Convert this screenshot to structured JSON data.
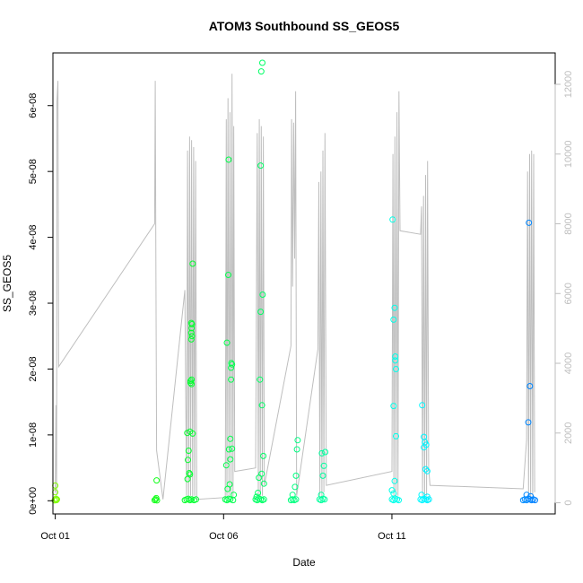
{
  "chart_data": {
    "type": "scatter",
    "title": "ATOM3 Southbound SS_GEOS5",
    "xlabel": "Date",
    "ylabel": "SS_GEOS5",
    "x_ticks": [
      {
        "value": 1,
        "label": "Oct 01"
      },
      {
        "value": 6,
        "label": "Oct 06"
      },
      {
        "value": 11,
        "label": "Oct 11"
      }
    ],
    "y_ticks": [
      {
        "value": 0,
        "label": "0e+00"
      },
      {
        "value": 1e-08,
        "label": "1e-08"
      },
      {
        "value": 2e-08,
        "label": "2e-08"
      },
      {
        "value": 3e-08,
        "label": "3e-08"
      },
      {
        "value": 4e-08,
        "label": "4e-08"
      },
      {
        "value": 5e-08,
        "label": "5e-08"
      },
      {
        "value": 6e-08,
        "label": "6e-08"
      }
    ],
    "y2_ticks": [
      {
        "value": 0,
        "label": "0"
      },
      {
        "value": 2000,
        "label": "2000"
      },
      {
        "value": 4000,
        "label": "4000"
      },
      {
        "value": 6000,
        "label": "6000"
      },
      {
        "value": 8000,
        "label": "8000"
      },
      {
        "value": 10000,
        "label": "10000"
      },
      {
        "value": 12000,
        "label": "12000"
      }
    ],
    "xlim": [
      0.93,
      15.85
    ],
    "ylim": [
      -2e-09,
      6.8e-08
    ],
    "y2lim": [
      -320,
      12900
    ],
    "grid": false,
    "colors": {
      "altitude_line": "#bebebe",
      "scale": [
        "#80ff00",
        "#00ff20",
        "#00ff80",
        "#00ffff",
        "#0080ff"
      ]
    },
    "altitude": [
      {
        "x": 1.0,
        "y": 300
      },
      {
        "x": 1.02,
        "y": 2800
      },
      {
        "x": 1.04,
        "y": 200
      },
      {
        "x": 1.05,
        "y": 11500
      },
      {
        "x": 1.08,
        "y": 12100
      },
      {
        "x": 1.1,
        "y": 3900
      },
      {
        "x": 3.95,
        "y": 8000
      },
      {
        "x": 3.97,
        "y": 12100
      },
      {
        "x": 3.99,
        "y": 6200
      },
      {
        "x": 4.01,
        "y": 1500
      },
      {
        "x": 4.2,
        "y": 100
      },
      {
        "x": 4.85,
        "y": 6100
      },
      {
        "x": 4.9,
        "y": 200
      },
      {
        "x": 4.93,
        "y": 10100
      },
      {
        "x": 4.96,
        "y": 150
      },
      {
        "x": 4.99,
        "y": 10500
      },
      {
        "x": 5.02,
        "y": 200
      },
      {
        "x": 5.05,
        "y": 10400
      },
      {
        "x": 5.08,
        "y": 150
      },
      {
        "x": 5.11,
        "y": 10200
      },
      {
        "x": 5.14,
        "y": 200
      },
      {
        "x": 5.17,
        "y": 9800
      },
      {
        "x": 5.2,
        "y": 100
      },
      {
        "x": 6.05,
        "y": 150
      },
      {
        "x": 6.08,
        "y": 11000
      },
      {
        "x": 6.1,
        "y": 200
      },
      {
        "x": 6.13,
        "y": 11600
      },
      {
        "x": 6.16,
        "y": 150
      },
      {
        "x": 6.19,
        "y": 11200
      },
      {
        "x": 6.22,
        "y": 200
      },
      {
        "x": 6.25,
        "y": 12300
      },
      {
        "x": 6.28,
        "y": 100
      },
      {
        "x": 6.3,
        "y": 10800
      },
      {
        "x": 6.33,
        "y": 900
      },
      {
        "x": 6.95,
        "y": 1000
      },
      {
        "x": 7.0,
        "y": 10600
      },
      {
        "x": 7.03,
        "y": 200
      },
      {
        "x": 7.06,
        "y": 11000
      },
      {
        "x": 7.09,
        "y": 150
      },
      {
        "x": 7.12,
        "y": 10800
      },
      {
        "x": 7.15,
        "y": 200
      },
      {
        "x": 7.18,
        "y": 10500
      },
      {
        "x": 7.21,
        "y": 500
      },
      {
        "x": 8.0,
        "y": 4500
      },
      {
        "x": 8.02,
        "y": 11000
      },
      {
        "x": 8.05,
        "y": 6200
      },
      {
        "x": 8.08,
        "y": 10900
      },
      {
        "x": 8.11,
        "y": 7000
      },
      {
        "x": 8.14,
        "y": 11800
      },
      {
        "x": 8.17,
        "y": 200
      },
      {
        "x": 8.8,
        "y": 4400
      },
      {
        "x": 8.83,
        "y": 9200
      },
      {
        "x": 8.86,
        "y": 200
      },
      {
        "x": 8.89,
        "y": 9500
      },
      {
        "x": 8.92,
        "y": 150
      },
      {
        "x": 8.95,
        "y": 10100
      },
      {
        "x": 8.98,
        "y": 300
      },
      {
        "x": 9.01,
        "y": 10600
      },
      {
        "x": 9.05,
        "y": 500
      },
      {
        "x": 11.0,
        "y": 900
      },
      {
        "x": 11.03,
        "y": 10000
      },
      {
        "x": 11.06,
        "y": 200
      },
      {
        "x": 11.09,
        "y": 10500
      },
      {
        "x": 11.12,
        "y": 150
      },
      {
        "x": 11.15,
        "y": 11200
      },
      {
        "x": 11.18,
        "y": 200
      },
      {
        "x": 11.21,
        "y": 11800
      },
      {
        "x": 11.24,
        "y": 7800
      },
      {
        "x": 11.85,
        "y": 7700
      },
      {
        "x": 11.88,
        "y": 8500
      },
      {
        "x": 11.91,
        "y": 200
      },
      {
        "x": 11.94,
        "y": 8800
      },
      {
        "x": 11.97,
        "y": 150
      },
      {
        "x": 12.0,
        "y": 9400
      },
      {
        "x": 12.03,
        "y": 200
      },
      {
        "x": 12.06,
        "y": 9800
      },
      {
        "x": 12.09,
        "y": 1000
      },
      {
        "x": 12.13,
        "y": 500
      },
      {
        "x": 14.9,
        "y": 400
      },
      {
        "x": 15.0,
        "y": 1800
      },
      {
        "x": 15.03,
        "y": 9500
      },
      {
        "x": 15.06,
        "y": 200
      },
      {
        "x": 15.09,
        "y": 10000
      },
      {
        "x": 15.12,
        "y": 150
      },
      {
        "x": 15.15,
        "y": 10100
      },
      {
        "x": 15.18,
        "y": 200
      },
      {
        "x": 15.21,
        "y": 10000
      },
      {
        "x": 15.24,
        "y": 300
      }
    ],
    "points": [
      {
        "x": 1.0,
        "y": 2.3e-09
      },
      {
        "x": 1.0,
        "y": 1.3e-09
      },
      {
        "x": 1.02,
        "y": 3e-10
      },
      {
        "x": 1.03,
        "y": 1e-10
      },
      {
        "x": 1.05,
        "y": 2e-10
      },
      {
        "x": 0.98,
        "y": 5e-11
      },
      {
        "x": 3.95,
        "y": 1e-10
      },
      {
        "x": 3.98,
        "y": 2e-10
      },
      {
        "x": 4.02,
        "y": 5e-11
      },
      {
        "x": 4.01,
        "y": 3.1e-09
      },
      {
        "x": 4.0,
        "y": 4e-10
      },
      {
        "x": 4.85,
        "y": 1e-10
      },
      {
        "x": 4.9,
        "y": 2e-10
      },
      {
        "x": 4.95,
        "y": 3e-10
      },
      {
        "x": 5.0,
        "y": 1e-10
      },
      {
        "x": 5.05,
        "y": 2e-10
      },
      {
        "x": 5.12,
        "y": 1e-10
      },
      {
        "x": 5.18,
        "y": 2e-10
      },
      {
        "x": 4.92,
        "y": 1.03e-08
      },
      {
        "x": 4.96,
        "y": 7.6e-09
      },
      {
        "x": 4.94,
        "y": 6.2e-09
      },
      {
        "x": 4.98,
        "y": 4.2e-09
      },
      {
        "x": 4.93,
        "y": 3.3e-09
      },
      {
        "x": 5.0,
        "y": 1.05e-08
      },
      {
        "x": 5.02,
        "y": 1.79e-08
      },
      {
        "x": 5.05,
        "y": 1.77e-08
      },
      {
        "x": 5.05,
        "y": 1.84e-08
      },
      {
        "x": 5.02,
        "y": 1.82e-08
      },
      {
        "x": 5.04,
        "y": 2.45e-08
      },
      {
        "x": 5.06,
        "y": 2.5e-08
      },
      {
        "x": 5.04,
        "y": 2.55e-08
      },
      {
        "x": 5.05,
        "y": 2.62e-08
      },
      {
        "x": 5.04,
        "y": 2.7e-08
      },
      {
        "x": 5.06,
        "y": 2.68e-08
      },
      {
        "x": 5.08,
        "y": 3.6e-08
      },
      {
        "x": 5.08,
        "y": 1.02e-08
      },
      {
        "x": 5.0,
        "y": 4e-09
      },
      {
        "x": 6.05,
        "y": 2e-10
      },
      {
        "x": 6.1,
        "y": 1e-10
      },
      {
        "x": 6.15,
        "y": 3e-10
      },
      {
        "x": 6.2,
        "y": 2e-10
      },
      {
        "x": 6.28,
        "y": 1e-10
      },
      {
        "x": 6.08,
        "y": 5.4e-09
      },
      {
        "x": 6.1,
        "y": 2.4e-08
      },
      {
        "x": 6.12,
        "y": 1.8e-09
      },
      {
        "x": 6.14,
        "y": 3.43e-08
      },
      {
        "x": 6.15,
        "y": 5.18e-08
      },
      {
        "x": 6.16,
        "y": 7.8e-09
      },
      {
        "x": 6.18,
        "y": 2.5e-09
      },
      {
        "x": 6.2,
        "y": 6.3e-09
      },
      {
        "x": 6.2,
        "y": 9.4e-09
      },
      {
        "x": 6.22,
        "y": 2.02e-08
      },
      {
        "x": 6.23,
        "y": 2.09e-08
      },
      {
        "x": 6.25,
        "y": 2.07e-08
      },
      {
        "x": 6.22,
        "y": 1.84e-08
      },
      {
        "x": 6.25,
        "y": 7.9e-09
      },
      {
        "x": 6.3,
        "y": 9e-10
      },
      {
        "x": 6.95,
        "y": 2e-10
      },
      {
        "x": 7.0,
        "y": 1e-10
      },
      {
        "x": 7.05,
        "y": 3e-10
      },
      {
        "x": 7.1,
        "y": 2e-10
      },
      {
        "x": 7.15,
        "y": 1e-10
      },
      {
        "x": 7.2,
        "y": 2e-10
      },
      {
        "x": 6.98,
        "y": 6e-10
      },
      {
        "x": 7.02,
        "y": 1.2e-09
      },
      {
        "x": 7.05,
        "y": 3.5e-09
      },
      {
        "x": 7.08,
        "y": 1.84e-08
      },
      {
        "x": 7.1,
        "y": 2.87e-08
      },
      {
        "x": 7.1,
        "y": 5.09e-08
      },
      {
        "x": 7.12,
        "y": 6.52e-08
      },
      {
        "x": 7.15,
        "y": 6.65e-08
      },
      {
        "x": 7.16,
        "y": 3.13e-08
      },
      {
        "x": 7.14,
        "y": 1.45e-08
      },
      {
        "x": 7.18,
        "y": 6.8e-09
      },
      {
        "x": 7.2,
        "y": 2.6e-09
      },
      {
        "x": 7.13,
        "y": 4.1e-09
      },
      {
        "x": 8.0,
        "y": 1e-10
      },
      {
        "x": 8.05,
        "y": 2e-10
      },
      {
        "x": 8.1,
        "y": 1e-10
      },
      {
        "x": 8.15,
        "y": 2e-10
      },
      {
        "x": 8.05,
        "y": 9e-10
      },
      {
        "x": 8.12,
        "y": 2.1e-09
      },
      {
        "x": 8.15,
        "y": 3.8e-09
      },
      {
        "x": 8.18,
        "y": 7.8e-09
      },
      {
        "x": 8.2,
        "y": 9.2e-09
      },
      {
        "x": 8.85,
        "y": 2e-10
      },
      {
        "x": 8.9,
        "y": 1e-10
      },
      {
        "x": 8.95,
        "y": 3e-10
      },
      {
        "x": 9.0,
        "y": 2e-10
      },
      {
        "x": 8.9,
        "y": 9e-10
      },
      {
        "x": 8.95,
        "y": 3.8e-09
      },
      {
        "x": 8.98,
        "y": 5.3e-09
      },
      {
        "x": 8.92,
        "y": 7.2e-09
      },
      {
        "x": 9.02,
        "y": 7.4e-09
      },
      {
        "x": 11.0,
        "y": 2e-10
      },
      {
        "x": 11.05,
        "y": 1e-10
      },
      {
        "x": 11.1,
        "y": 3e-10
      },
      {
        "x": 11.15,
        "y": 2e-10
      },
      {
        "x": 11.2,
        "y": 1e-10
      },
      {
        "x": 11.0,
        "y": 1.6e-09
      },
      {
        "x": 11.05,
        "y": 1.1e-09
      },
      {
        "x": 11.08,
        "y": 3e-09
      },
      {
        "x": 11.02,
        "y": 4.27e-08
      },
      {
        "x": 11.05,
        "y": 2.75e-08
      },
      {
        "x": 11.08,
        "y": 2.93e-08
      },
      {
        "x": 11.1,
        "y": 2.19e-08
      },
      {
        "x": 11.1,
        "y": 2.13e-08
      },
      {
        "x": 11.12,
        "y": 2e-08
      },
      {
        "x": 11.05,
        "y": 1.44e-08
      },
      {
        "x": 11.12,
        "y": 9.8e-09
      },
      {
        "x": 11.85,
        "y": 2e-10
      },
      {
        "x": 11.9,
        "y": 1e-10
      },
      {
        "x": 11.95,
        "y": 3e-10
      },
      {
        "x": 12.0,
        "y": 2e-10
      },
      {
        "x": 12.05,
        "y": 1e-10
      },
      {
        "x": 12.1,
        "y": 2e-10
      },
      {
        "x": 11.88,
        "y": 9e-10
      },
      {
        "x": 11.9,
        "y": 1.45e-08
      },
      {
        "x": 11.95,
        "y": 9.7e-09
      },
      {
        "x": 11.98,
        "y": 8.9e-09
      },
      {
        "x": 11.95,
        "y": 8.1e-09
      },
      {
        "x": 12.02,
        "y": 8.5e-09
      },
      {
        "x": 12.0,
        "y": 4.8e-09
      },
      {
        "x": 12.05,
        "y": 4.5e-09
      },
      {
        "x": 12.05,
        "y": 6e-10
      },
      {
        "x": 14.9,
        "y": 1e-10
      },
      {
        "x": 14.95,
        "y": 2e-10
      },
      {
        "x": 15.0,
        "y": 1e-10
      },
      {
        "x": 15.05,
        "y": 3e-10
      },
      {
        "x": 15.1,
        "y": 2e-10
      },
      {
        "x": 15.15,
        "y": 1e-10
      },
      {
        "x": 15.2,
        "y": 2e-10
      },
      {
        "x": 15.25,
        "y": 1e-10
      },
      {
        "x": 15.0,
        "y": 9e-10
      },
      {
        "x": 15.05,
        "y": 1.19e-08
      },
      {
        "x": 15.1,
        "y": 1.74e-08
      },
      {
        "x": 15.07,
        "y": 4.22e-08
      },
      {
        "x": 15.12,
        "y": 7e-10
      }
    ]
  }
}
